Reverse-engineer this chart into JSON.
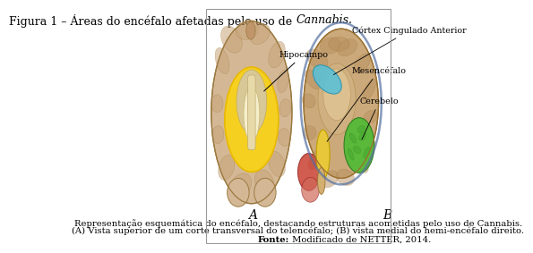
{
  "background_color": "#ffffff",
  "title_normal": "Figura 1 – Áreas do encéfalo afetadas pelo uso de ",
  "title_italic": "Cannabis",
  "title_after": ".",
  "title_fontsize": 9.0,
  "label_A": "A",
  "label_B": "B",
  "label_fontsize": 10,
  "annotation_hipocampo": "Hipocampo",
  "annotation_cortex": "Córtex Cingulado Anterior",
  "annotation_mesencefalo": "Mesencéfalo",
  "annotation_cerebelo": "Cerebelo",
  "annotation_fontsize": 6.8,
  "caption_line1": "Representação esquemática do encéfalo, destacando estruturas acometidas pelo uso de Cannabis.",
  "caption_line2": "(A) Vista superior de um corte transversal do telencéfalo; (B) vista medial do hemi-encéfalo direito.",
  "source_bold": "Fonte:",
  "source_normal": " Modificado de NETTER, 2014.",
  "caption_fontsize": 7.2,
  "source_fontsize": 7.2,
  "brain_A_base": "#d4b896",
  "brain_A_gyri": "#c9a47a",
  "brain_A_edge": "#9b7a40",
  "brain_A_yellow": "#f5d020",
  "brain_A_yellow_dark": "#e8b800",
  "brain_A_cream": "#e8ddb0",
  "brain_A_white": "#f5eecc",
  "brain_B_base": "#cba97a",
  "brain_B_gyri": "#b89060",
  "brain_B_edge": "#9a7030",
  "brain_B_blue": "#5bbfd4",
  "brain_B_green": "#5ab83a",
  "brain_B_yellow": "#e8c83a",
  "brain_B_red": "#c84030",
  "brain_B_ring": "#5570a0",
  "brain_B_cream": "#d4b070"
}
